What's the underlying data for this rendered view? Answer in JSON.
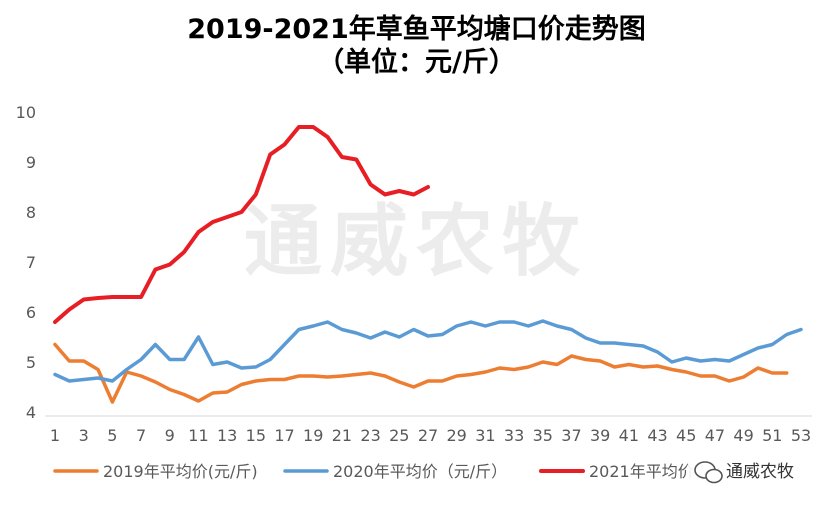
{
  "chart_data": {
    "type": "line",
    "title_line1": "2019-2021年草鱼平均塘口价走势图",
    "title_line2": "（单位：元/斤）",
    "xlabel": "",
    "ylabel": "",
    "ylim": [
      4,
      10
    ],
    "yticks": [
      4,
      5,
      6,
      7,
      8,
      9,
      10
    ],
    "xlim": [
      1,
      53
    ],
    "xticks": [
      1,
      3,
      5,
      7,
      9,
      11,
      13,
      15,
      17,
      19,
      21,
      23,
      25,
      27,
      29,
      31,
      33,
      35,
      37,
      39,
      41,
      43,
      45,
      47,
      49,
      51,
      53
    ],
    "grid": false,
    "legend_position": "bottom",
    "series": [
      {
        "name": "2019年平均价(元/斤)",
        "color": "#ED7D31",
        "values": [
          5.35,
          5.02,
          5.02,
          4.85,
          4.2,
          4.8,
          4.72,
          4.6,
          4.45,
          4.35,
          4.22,
          4.38,
          4.4,
          4.55,
          4.62,
          4.65,
          4.65,
          4.72,
          4.72,
          4.7,
          4.72,
          4.75,
          4.78,
          4.72,
          4.6,
          4.5,
          4.62,
          4.62,
          4.72,
          4.75,
          4.8,
          4.88,
          4.85,
          4.9,
          5.0,
          4.95,
          5.12,
          5.05,
          5.02,
          4.9,
          4.95,
          4.9,
          4.92,
          4.85,
          4.8,
          4.72,
          4.72,
          4.62,
          4.7,
          4.88,
          4.78,
          4.78
        ]
      },
      {
        "name": "2020年平均价（元/斤）",
        "color": "#5B9BD5",
        "values": [
          4.75,
          4.62,
          4.65,
          4.68,
          4.62,
          4.85,
          5.05,
          5.35,
          5.05,
          5.05,
          5.5,
          4.95,
          5.0,
          4.88,
          4.9,
          5.05,
          5.35,
          5.65,
          5.72,
          5.8,
          5.65,
          5.58,
          5.48,
          5.6,
          5.5,
          5.65,
          5.52,
          5.55,
          5.72,
          5.8,
          5.72,
          5.8,
          5.8,
          5.72,
          5.82,
          5.72,
          5.65,
          5.48,
          5.38,
          5.38,
          5.35,
          5.32,
          5.2,
          5.0,
          5.08,
          5.02,
          5.05,
          5.02,
          5.15,
          5.28,
          5.35,
          5.55,
          5.65
        ]
      },
      {
        "name": "2021年平均价",
        "color": "#E81E25",
        "values": [
          5.8,
          6.05,
          6.25,
          6.28,
          6.3,
          6.3,
          6.3,
          6.85,
          6.95,
          7.2,
          7.6,
          7.8,
          7.9,
          8.0,
          8.35,
          9.15,
          9.35,
          9.7,
          9.7,
          9.5,
          9.1,
          9.05,
          8.55,
          8.35,
          8.42,
          8.35,
          8.5
        ]
      }
    ]
  },
  "watermark": {
    "text": "通威农牧",
    "badge_text": "通威农牧"
  }
}
